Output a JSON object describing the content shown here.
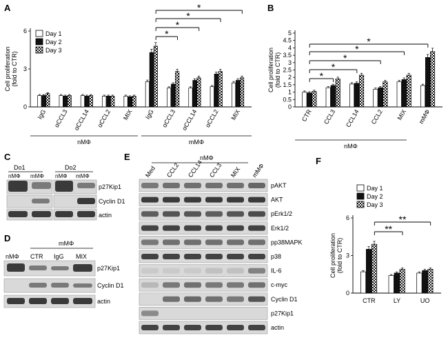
{
  "panel_letters": {
    "A": "A",
    "B": "B",
    "C": "C",
    "D": "D",
    "E": "E",
    "F": "F"
  },
  "colors": {
    "day1": "#ffffff",
    "day2": "#111111",
    "day3_pattern": "checker"
  },
  "legend": [
    "Day 1",
    "Day 2",
    "Day 3"
  ],
  "sig": "*",
  "sig2": "**",
  "chart_data": [
    {
      "panel": "A",
      "type": "bar",
      "ylabel": "Cell proliferation (fold to CTR)",
      "ylabel_lines": [
        "Cell proliferation",
        "(fold to CTR)"
      ],
      "ylim": [
        0,
        6
      ],
      "yticks": [
        0,
        3,
        6
      ],
      "legend_position": "top-left",
      "categories": [
        "IgG",
        "αCCL3",
        "αCCL14",
        "αCCL2",
        "MIX",
        "IgG",
        "αCCL3",
        "αCCL14",
        "αCCL2",
        "MIX"
      ],
      "group_labels": [
        "nMΦ",
        "mMΦ"
      ],
      "series": [
        {
          "name": "Day 1",
          "values": [
            0.9,
            0.9,
            0.9,
            0.85,
            0.85,
            2.0,
            1.5,
            1.5,
            1.6,
            1.9
          ]
        },
        {
          "name": "Day 2",
          "values": [
            0.9,
            0.85,
            0.85,
            0.85,
            0.8,
            4.3,
            1.8,
            2.1,
            2.6,
            2.1
          ]
        },
        {
          "name": "Day 3",
          "values": [
            1.05,
            0.9,
            0.9,
            0.85,
            0.85,
            4.8,
            2.8,
            2.3,
            2.8,
            2.3
          ]
        }
      ],
      "significance": [
        "*",
        "*",
        "*",
        "*"
      ]
    },
    {
      "panel": "B",
      "type": "bar",
      "ylabel": "Cell proliferation (fold to CTR)",
      "ylabel_lines": [
        "Cell proliferation",
        "(fold to CTR)"
      ],
      "ylim": [
        0,
        5
      ],
      "yticks": [
        0,
        0.5,
        1,
        1.5,
        2,
        2.5,
        3,
        3.5,
        4,
        4.5,
        5
      ],
      "ytick_labels": [
        "0",
        "0.5",
        "1",
        "1.5",
        "2",
        "2.5",
        "3",
        "3.5",
        "4",
        "4.5",
        "5"
      ],
      "categories": [
        "CTR",
        "CCL3",
        "CCL14",
        "CCL2",
        "MIX",
        "mMΦ"
      ],
      "group_labels": [
        "nMΦ"
      ],
      "series": [
        {
          "name": "Day 1",
          "values": [
            1.0,
            1.3,
            1.55,
            1.2,
            1.7,
            1.45
          ]
        },
        {
          "name": "Day 2",
          "values": [
            0.95,
            1.45,
            1.6,
            1.3,
            1.85,
            3.35
          ]
        },
        {
          "name": "Day 3",
          "values": [
            1.05,
            1.9,
            2.15,
            1.7,
            2.15,
            3.75
          ]
        }
      ],
      "significance": [
        "*",
        "*",
        "*",
        "*",
        "*"
      ]
    },
    {
      "panel": "F",
      "type": "bar",
      "ylabel": "Cell proliferation (fold to CTR)",
      "ylabel_lines": [
        "Cell proliferation",
        "(fold to CTR)"
      ],
      "ylim": [
        0,
        6
      ],
      "yticks": [
        0,
        3,
        6
      ],
      "legend_position": "top-left",
      "categories": [
        "CTR",
        "LY",
        "UO"
      ],
      "series": [
        {
          "name": "Day 1",
          "values": [
            1.7,
            1.4,
            1.6
          ]
        },
        {
          "name": "Day 2",
          "values": [
            3.5,
            1.6,
            1.8
          ]
        },
        {
          "name": "Day 3",
          "values": [
            3.9,
            1.9,
            1.9
          ]
        }
      ],
      "significance": [
        "**",
        "**"
      ]
    }
  ],
  "blot_C": {
    "donors": [
      "Do1",
      "Do2"
    ],
    "lanes": [
      "nMΦ",
      "mMΦ",
      "nMΦ",
      "mMΦ"
    ],
    "rows": [
      "p27Kip1",
      "Cyclin D1",
      "actin"
    ]
  },
  "blot_D": {
    "header": "mMΦ",
    "lanes": [
      "nMΦ",
      "CTR",
      "IgG",
      "MIX"
    ],
    "rows": [
      "p27Kip1",
      "Cyclin D1",
      "actin"
    ]
  },
  "blot_E": {
    "header": "nMΦ",
    "lanes": [
      "Med",
      "CCL2",
      "CCL14",
      "CCL3",
      "MIX",
      "mMΦ"
    ],
    "rows": [
      "pAKT",
      "AKT",
      "pErk1/2",
      "Erk1/2",
      "pp38MAPK",
      "p38",
      "IL-6",
      "c-myc",
      "Cyclin D1",
      "p27Kip1",
      "actin"
    ]
  }
}
